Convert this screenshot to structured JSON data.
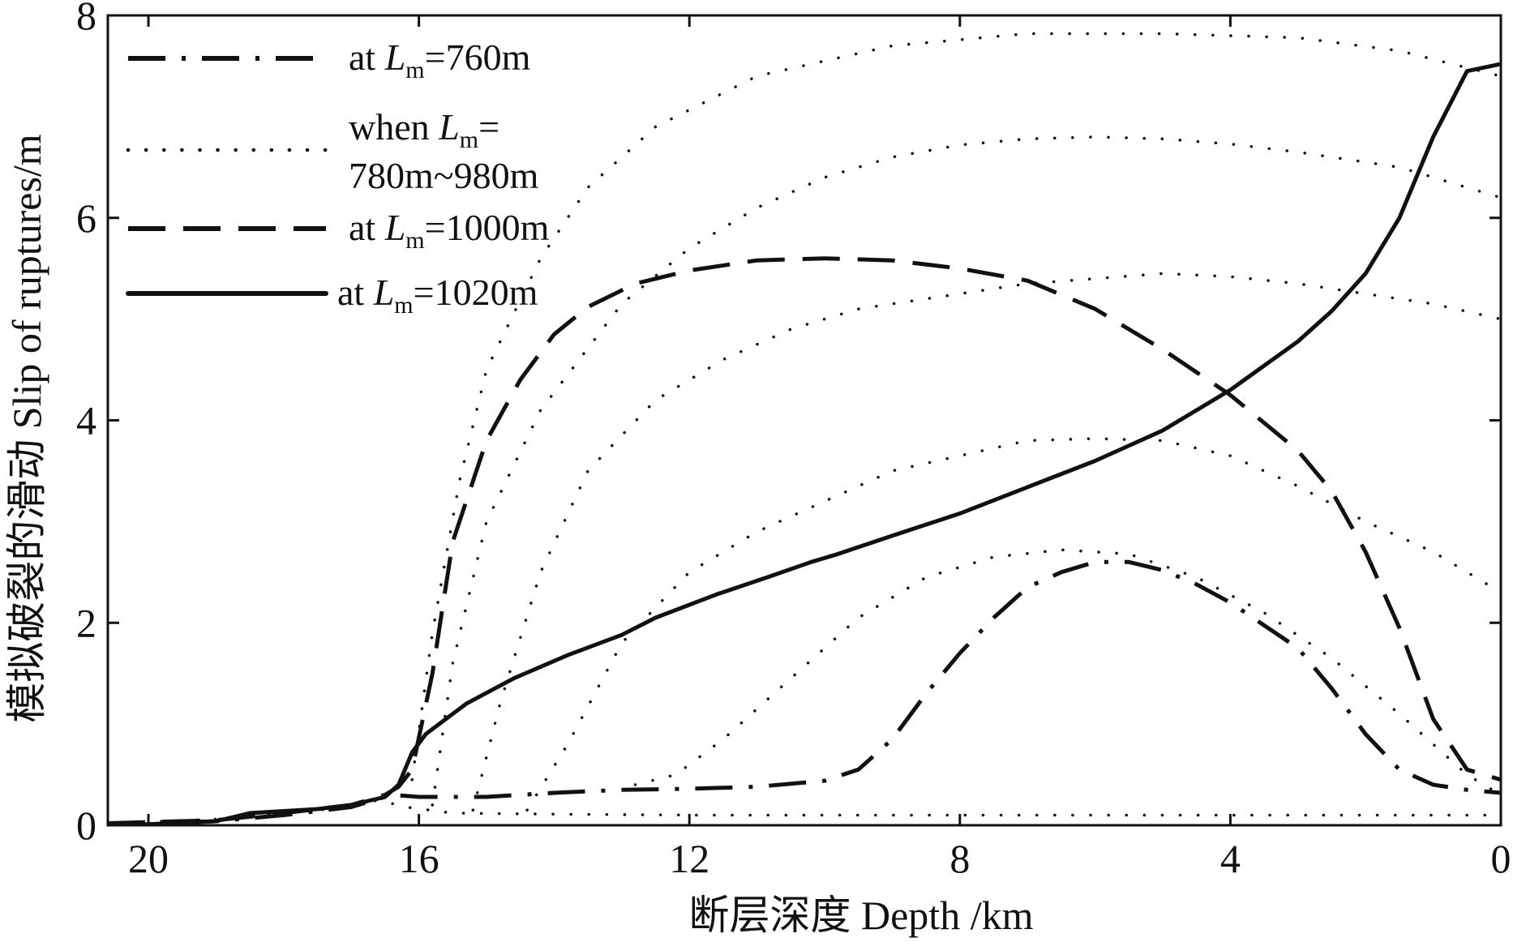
{
  "chart_data": {
    "type": "line",
    "xlabel": "断层深度 Depth /km",
    "ylabel": "模拟破裂的滑动 Slip of ruptures/m",
    "xlim": [
      20.6,
      0
    ],
    "ylim": [
      0,
      8
    ],
    "x_reversed": true,
    "xticks": [
      "20",
      "16",
      "12",
      "8",
      "4",
      "0"
    ],
    "yticks": [
      "0",
      "2",
      "4",
      "6",
      "8"
    ],
    "grid": false,
    "legend_position": "top-left",
    "legend": [
      {
        "pre": "at ",
        "var": "L",
        "sub": "m",
        "post": "=760m",
        "style": "dashdot"
      },
      {
        "line1_pre": "when ",
        "var": "L",
        "sub": "m",
        "line1_post": "=",
        "line2": "780m~980m",
        "style": "dotted"
      },
      {
        "pre": "at ",
        "var": "L",
        "sub": "m",
        "post": "=1000m",
        "style": "dashed"
      },
      {
        "pre": "at ",
        "var": "L",
        "sub": "m",
        "post": "=1020m",
        "style": "solid"
      }
    ],
    "series": [
      {
        "style": "solid",
        "points": [
          [
            20.6,
            0.0
          ],
          [
            20,
            0.01
          ],
          [
            19,
            0.04
          ],
          [
            18.5,
            0.12
          ],
          [
            17.5,
            0.16
          ],
          [
            17,
            0.2
          ],
          [
            16.5,
            0.28
          ],
          [
            16.3,
            0.4
          ],
          [
            16.1,
            0.72
          ],
          [
            15.9,
            0.9
          ],
          [
            15.3,
            1.2
          ],
          [
            14.6,
            1.45
          ],
          [
            13.8,
            1.68
          ],
          [
            13,
            1.88
          ],
          [
            12.5,
            2.05
          ],
          [
            11.6,
            2.28
          ],
          [
            10.8,
            2.46
          ],
          [
            10.2,
            2.6
          ],
          [
            9.8,
            2.68
          ],
          [
            9,
            2.86
          ],
          [
            8,
            3.08
          ],
          [
            7,
            3.34
          ],
          [
            6,
            3.6
          ],
          [
            5,
            3.9
          ],
          [
            4,
            4.3
          ],
          [
            3,
            4.78
          ],
          [
            2.5,
            5.08
          ],
          [
            2,
            5.45
          ],
          [
            1.5,
            6.0
          ],
          [
            1,
            6.8
          ],
          [
            0.5,
            7.45
          ],
          [
            0,
            7.52
          ]
        ]
      },
      {
        "style": "dashed",
        "points": [
          [
            20.6,
            0.02
          ],
          [
            19,
            0.05
          ],
          [
            18,
            0.12
          ],
          [
            17,
            0.2
          ],
          [
            16.5,
            0.3
          ],
          [
            16.3,
            0.38
          ],
          [
            16.1,
            0.55
          ],
          [
            15.8,
            1.5
          ],
          [
            15.5,
            2.8
          ],
          [
            15,
            3.8
          ],
          [
            14.5,
            4.4
          ],
          [
            14,
            4.85
          ],
          [
            13.5,
            5.12
          ],
          [
            12.8,
            5.35
          ],
          [
            12,
            5.48
          ],
          [
            11,
            5.58
          ],
          [
            10,
            5.6
          ],
          [
            9,
            5.58
          ],
          [
            8,
            5.5
          ],
          [
            7,
            5.38
          ],
          [
            6,
            5.1
          ],
          [
            5,
            4.7
          ],
          [
            4,
            4.25
          ],
          [
            3,
            3.7
          ],
          [
            2.5,
            3.3
          ],
          [
            2,
            2.7
          ],
          [
            1.5,
            1.95
          ],
          [
            1,
            1.05
          ],
          [
            0.5,
            0.55
          ],
          [
            0,
            0.45
          ]
        ]
      },
      {
        "style": "dashdot",
        "points": [
          [
            20.6,
            0.0
          ],
          [
            19,
            0.04
          ],
          [
            18,
            0.1
          ],
          [
            17,
            0.18
          ],
          [
            16.4,
            0.3
          ],
          [
            16,
            0.28
          ],
          [
            15,
            0.28
          ],
          [
            14,
            0.32
          ],
          [
            13,
            0.35
          ],
          [
            12,
            0.36
          ],
          [
            11,
            0.38
          ],
          [
            10,
            0.44
          ],
          [
            9.5,
            0.55
          ],
          [
            9,
            0.85
          ],
          [
            8.5,
            1.3
          ],
          [
            8,
            1.7
          ],
          [
            7.5,
            2.05
          ],
          [
            7,
            2.35
          ],
          [
            6.5,
            2.5
          ],
          [
            6,
            2.6
          ],
          [
            5.5,
            2.6
          ],
          [
            5,
            2.52
          ],
          [
            4.5,
            2.38
          ],
          [
            4,
            2.2
          ],
          [
            3,
            1.75
          ],
          [
            2.5,
            1.35
          ],
          [
            2,
            0.9
          ],
          [
            1.5,
            0.55
          ],
          [
            1,
            0.4
          ],
          [
            0.5,
            0.35
          ],
          [
            0,
            0.32
          ]
        ]
      },
      {
        "style": "dotted",
        "points": [
          [
            16.1,
            0.45
          ],
          [
            15.8,
            1.9
          ],
          [
            15.4,
            3.4
          ],
          [
            15,
            4.5
          ],
          [
            14.2,
            5.6
          ],
          [
            13.5,
            6.3
          ],
          [
            12.5,
            6.9
          ],
          [
            11,
            7.4
          ],
          [
            9,
            7.7
          ],
          [
            7,
            7.82
          ],
          [
            5,
            7.82
          ],
          [
            3,
            7.78
          ],
          [
            1.5,
            7.65
          ],
          [
            0,
            7.4
          ]
        ]
      },
      {
        "style": "dotted",
        "points": [
          [
            15.8,
            0.2
          ],
          [
            15.5,
            1.6
          ],
          [
            15,
            3.0
          ],
          [
            14.2,
            4.1
          ],
          [
            13,
            5.15
          ],
          [
            12,
            5.7
          ],
          [
            11,
            6.1
          ],
          [
            10,
            6.4
          ],
          [
            9,
            6.6
          ],
          [
            8,
            6.72
          ],
          [
            7,
            6.78
          ],
          [
            6,
            6.8
          ],
          [
            5,
            6.78
          ],
          [
            4,
            6.73
          ],
          [
            3,
            6.65
          ],
          [
            1.5,
            6.5
          ],
          [
            0,
            6.2
          ]
        ]
      },
      {
        "style": "dotted",
        "points": [
          [
            15.2,
            0.15
          ],
          [
            14.8,
            1.2
          ],
          [
            14.2,
            2.5
          ],
          [
            13.5,
            3.5
          ],
          [
            12.5,
            4.2
          ],
          [
            11.5,
            4.6
          ],
          [
            10.5,
            4.9
          ],
          [
            9.5,
            5.1
          ],
          [
            8,
            5.25
          ],
          [
            7,
            5.35
          ],
          [
            6,
            5.4
          ],
          [
            5,
            5.45
          ],
          [
            4,
            5.42
          ],
          [
            3,
            5.35
          ],
          [
            2,
            5.25
          ],
          [
            1,
            5.15
          ],
          [
            0,
            5.0
          ]
        ]
      },
      {
        "style": "dotted",
        "points": [
          [
            14.4,
            0.15
          ],
          [
            13.8,
            0.8
          ],
          [
            13,
            1.8
          ],
          [
            12,
            2.5
          ],
          [
            11,
            2.9
          ],
          [
            10,
            3.2
          ],
          [
            9,
            3.5
          ],
          [
            8,
            3.65
          ],
          [
            7,
            3.8
          ],
          [
            6,
            3.82
          ],
          [
            5,
            3.8
          ],
          [
            4,
            3.65
          ],
          [
            3,
            3.35
          ],
          [
            2,
            3.0
          ],
          [
            1,
            2.7
          ],
          [
            0,
            2.3
          ]
        ]
      },
      {
        "style": "dotted",
        "points": [
          [
            12.8,
            0.4
          ],
          [
            12.2,
            0.5
          ],
          [
            11.5,
            0.85
          ],
          [
            10.5,
            1.45
          ],
          [
            9.5,
            2.05
          ],
          [
            8.5,
            2.45
          ],
          [
            7.5,
            2.65
          ],
          [
            6.5,
            2.72
          ],
          [
            5.5,
            2.68
          ],
          [
            4.5,
            2.45
          ],
          [
            3.5,
            2.1
          ],
          [
            2.5,
            1.65
          ],
          [
            1.5,
            1.1
          ],
          [
            0.5,
            0.5
          ],
          [
            0,
            0.3
          ]
        ]
      },
      {
        "style": "dotted",
        "points": [
          [
            20.6,
            0.02
          ],
          [
            19,
            0.06
          ],
          [
            18,
            0.12
          ],
          [
            17,
            0.18
          ],
          [
            16.6,
            0.25
          ],
          [
            16.2,
            0.18
          ],
          [
            15.5,
            0.12
          ],
          [
            14,
            0.11
          ],
          [
            12,
            0.1
          ],
          [
            9,
            0.1
          ],
          [
            6,
            0.1
          ],
          [
            3,
            0.1
          ],
          [
            0,
            0.1
          ]
        ]
      }
    ]
  }
}
